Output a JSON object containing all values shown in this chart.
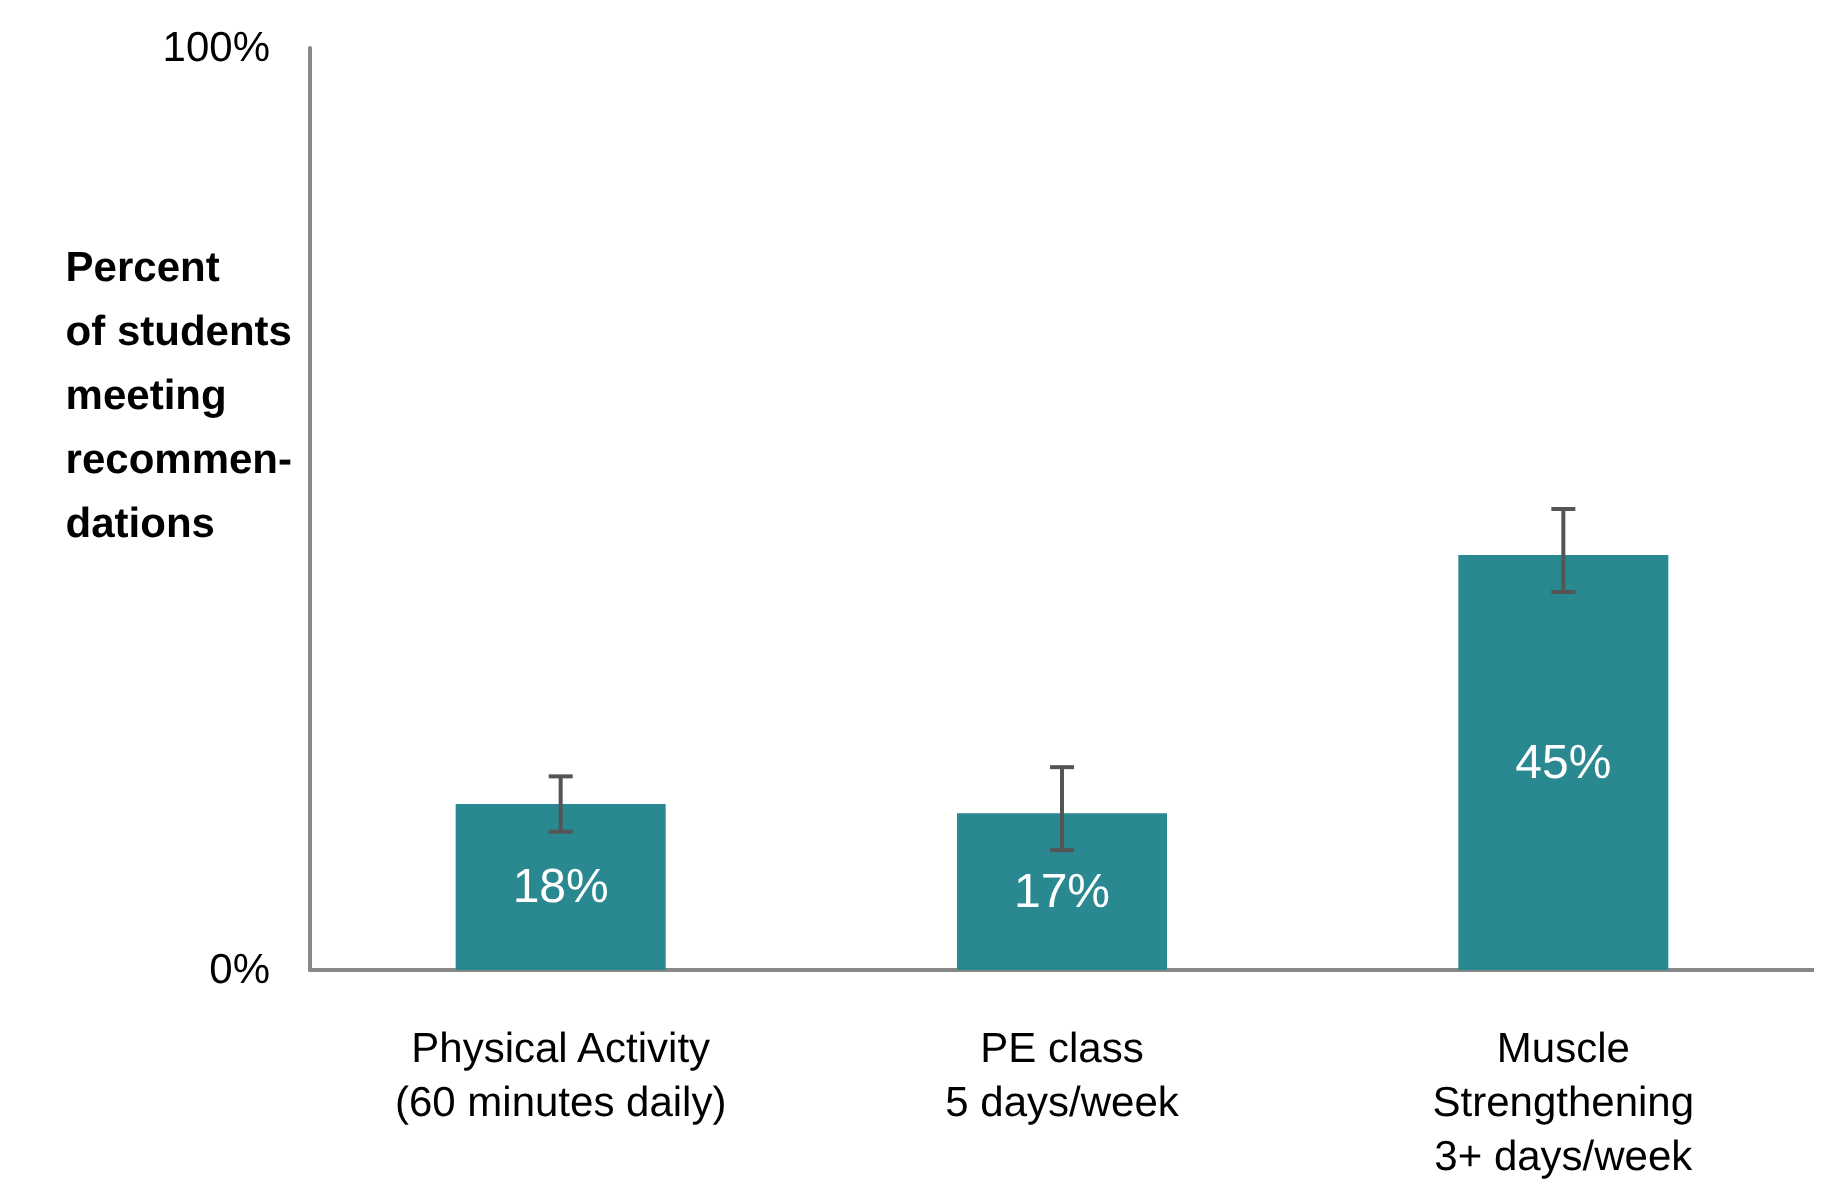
{
  "chart_data": {
    "type": "bar",
    "ylabel": "Percent\nof students\nmeeting\nrecommen-\ndations",
    "categories": [
      "Physical Activity\n(60 minutes daily)",
      "PE class\n5 days/week",
      "Muscle\nStrengthening\n3+ days/week"
    ],
    "values": [
      18,
      17,
      45
    ],
    "color": "#2a8891",
    "value_labels": [
      "18%",
      "17%",
      "45%"
    ],
    "errors": [
      [
        15,
        21
      ],
      [
        13,
        22
      ],
      [
        41,
        50
      ]
    ],
    "ylim": [
      0,
      100
    ],
    "yticks": [
      {
        "value": 0,
        "label": "0%"
      },
      {
        "value": 100,
        "label": "100%"
      }
    ],
    "grid": false
  }
}
